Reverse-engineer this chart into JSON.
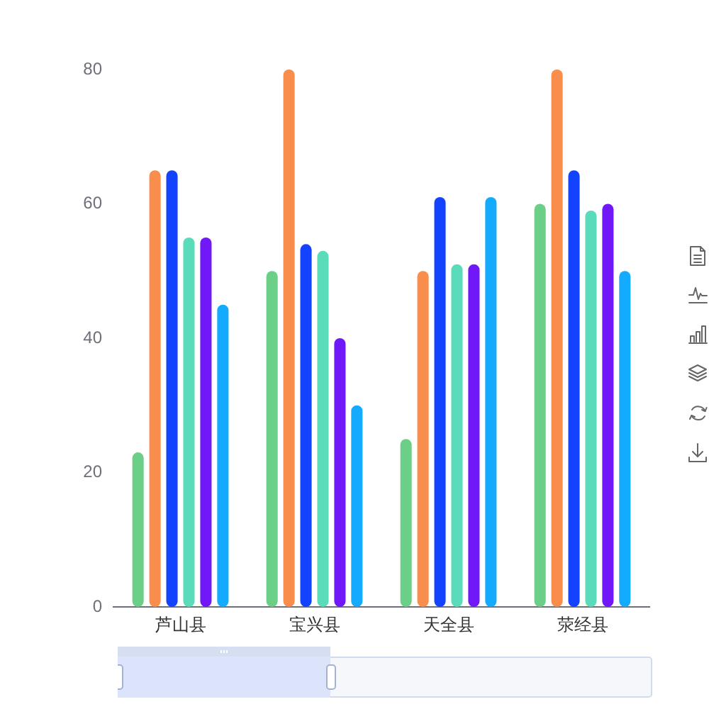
{
  "chart_data": {
    "type": "bar",
    "categories": [
      "芦山县",
      "宝兴县",
      "天全县",
      "荥经县"
    ],
    "series": [
      {
        "color": "#6bcf88",
        "values": [
          23,
          50,
          25,
          60
        ]
      },
      {
        "color": "#f98d4b",
        "values": [
          65,
          80,
          50,
          80
        ]
      },
      {
        "color": "#1443ff",
        "values": [
          65,
          54,
          61,
          65
        ]
      },
      {
        "color": "#5adbb9",
        "values": [
          55,
          53,
          51,
          59
        ]
      },
      {
        "color": "#7018f8",
        "values": [
          55,
          40,
          51,
          60
        ]
      },
      {
        "color": "#14aafe",
        "values": [
          45,
          30,
          61,
          50
        ]
      }
    ],
    "ylim": [
      0,
      80
    ],
    "yticks": [
      0,
      20,
      40,
      60,
      80
    ],
    "grid": false,
    "legend": false
  }
}
